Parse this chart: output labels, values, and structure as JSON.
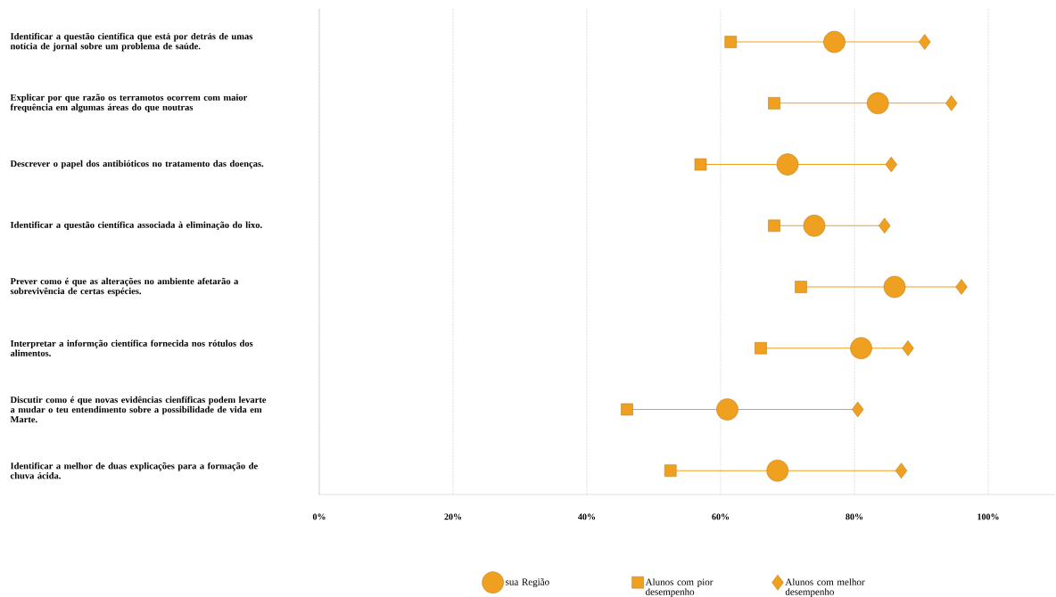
{
  "chart_data": {
    "type": "scatter",
    "categories": [
      "Identificar a questão científica que está por detrás de umas notícia de jornal sobre um problema de saúde.",
      "Explicar por que razão os terramotos ocorrem com maior frequência em algumas áreas do que noutras",
      "Descrever o papel dos antibióticos no tratamento das doenças.",
      "Identificar a questão científica associada à eliminação do lixo.",
      "Prever como é que as alterações no ambiente afetarão a sobrevivência de certas espécies.",
      "Interpretar a informção científica fornecida nos rótulos dos alimentos.",
      "Discutir como é que novas evidências cienfíficas podem levarte a mudar o teu entendimento sobre a possibilidade de vida em Marte.",
      "Identificar a melhor de duas explicações para a formação de chuva ácida."
    ],
    "orientation": "horizontal",
    "series": [
      {
        "name": "sua Região",
        "color": "#f0a020",
        "marker": "circle",
        "values": [
          77,
          83.5,
          70,
          74,
          86,
          81,
          61,
          68.5
        ]
      },
      {
        "name": "Alunos com pior desempenho",
        "color": "#f0a020",
        "marker": "square",
        "values": [
          61.5,
          68,
          57,
          68,
          72,
          66,
          46,
          52.5
        ]
      },
      {
        "name": "Alunos com melhor desempenho",
        "color": "#f0a020",
        "marker": "diamond",
        "values": [
          90.5,
          94.5,
          85.5,
          84.5,
          96,
          88,
          80.5,
          87
        ]
      }
    ],
    "xlim": [
      0,
      110
    ],
    "xticks": [
      {
        "value": 0,
        "label": "0%"
      },
      {
        "value": 20,
        "label": "20%"
      },
      {
        "value": 40,
        "label": "40%"
      },
      {
        "value": 60,
        "label": "60%"
      },
      {
        "value": 80,
        "label": "80%"
      },
      {
        "value": 100,
        "label": "100%"
      }
    ],
    "grid": "x",
    "legend": "bottom"
  }
}
